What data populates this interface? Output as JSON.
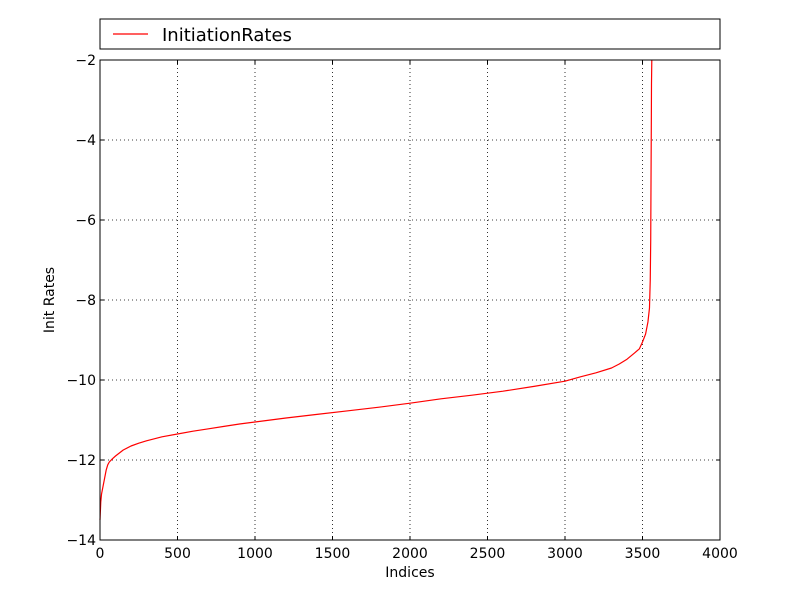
{
  "chart_data": {
    "type": "line",
    "title": "",
    "xlabel": "Indices",
    "ylabel": "Init Rates",
    "xlim": [
      0,
      4000
    ],
    "ylim": [
      -14,
      -2
    ],
    "xticks": [
      0,
      500,
      1000,
      1500,
      2000,
      2500,
      3000,
      3500,
      4000
    ],
    "yticks": [
      -14,
      -12,
      -10,
      -8,
      -6,
      -4,
      -2
    ],
    "xtick_labels": [
      "0",
      "500",
      "1000",
      "1500",
      "2000",
      "2500",
      "3000",
      "3500",
      "4000"
    ],
    "ytick_labels": [
      "−14",
      "−12",
      "−10",
      "−8",
      "−6",
      "−4",
      "−2"
    ],
    "grid": true,
    "legend_position": "top, above plot",
    "colors": {
      "series": "#ff0000"
    },
    "series": [
      {
        "name": "InitiationRates",
        "x": [
          0,
          5,
          10,
          20,
          30,
          40,
          50,
          60,
          80,
          100,
          150,
          200,
          250,
          300,
          400,
          500,
          600,
          700,
          800,
          900,
          1000,
          1200,
          1400,
          1600,
          1800,
          2000,
          2200,
          2400,
          2600,
          2800,
          3000,
          3100,
          3200,
          3300,
          3350,
          3400,
          3450,
          3480,
          3500,
          3520,
          3535,
          3545,
          3550,
          3553,
          3555,
          3557,
          3558,
          3560
        ],
        "y": [
          -13.5,
          -13.05,
          -12.85,
          -12.65,
          -12.45,
          -12.25,
          -12.12,
          -12.05,
          -11.97,
          -11.9,
          -11.75,
          -11.65,
          -11.58,
          -11.52,
          -11.42,
          -11.35,
          -11.28,
          -11.22,
          -11.16,
          -11.1,
          -11.05,
          -10.95,
          -10.86,
          -10.77,
          -10.68,
          -10.58,
          -10.47,
          -10.38,
          -10.28,
          -10.16,
          -10.03,
          -9.92,
          -9.82,
          -9.7,
          -9.6,
          -9.48,
          -9.32,
          -9.22,
          -9.05,
          -8.85,
          -8.55,
          -8.2,
          -7.5,
          -6.5,
          -5.0,
          -3.5,
          -2.6,
          -2.0
        ]
      }
    ]
  }
}
